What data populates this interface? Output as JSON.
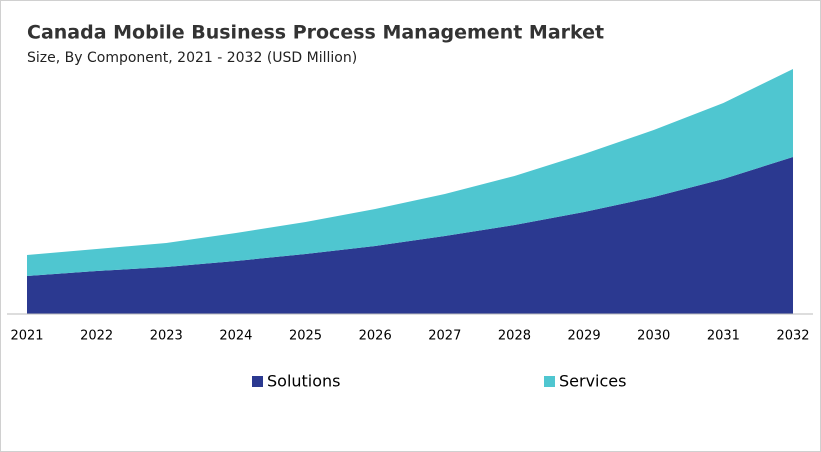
{
  "chart_data": {
    "type": "stacked-area",
    "title": "Canada Mobile Business Process Management Market",
    "subtitle": "Size, By Component, 2021 - 2032 (USD Million)",
    "categories": [
      "2021",
      "2022",
      "2023",
      "2024",
      "2025",
      "2026",
      "2027",
      "2028",
      "2029",
      "2030",
      "2031",
      "2032"
    ],
    "series": [
      {
        "name": "Solutions",
        "color": "#2b3990",
        "values": [
          38,
          43,
          47,
          53,
          60,
          68,
          78,
          89,
          102,
          117,
          135,
          157
        ]
      },
      {
        "name": "Services",
        "color": "#4fc6d0",
        "values": [
          21,
          22,
          24,
          28,
          32,
          37,
          42,
          49,
          58,
          67,
          76,
          88
        ]
      }
    ]
  }
}
